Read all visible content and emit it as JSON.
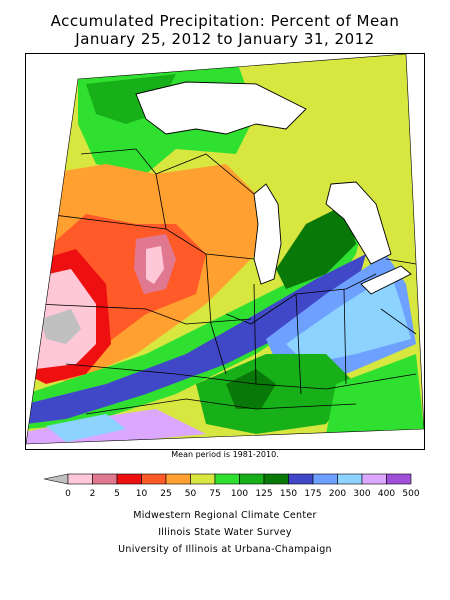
{
  "title": {
    "line1": "Accumulated Precipitation: Percent of Mean",
    "line2": "January 25, 2012 to January 31, 2012"
  },
  "note": "Mean period is 1981-2010.",
  "legend": {
    "labels": [
      "0",
      "2",
      "5",
      "10",
      "25",
      "50",
      "75",
      "100",
      "125",
      "150",
      "175",
      "200",
      "300",
      "400",
      "500"
    ],
    "colors": [
      "#ffc8d8",
      "#e07890",
      "#ee1010",
      "#ff5a28",
      "#ffa030",
      "#d8e640",
      "#30e030",
      "#18b018",
      "#087808",
      "#4048c8",
      "#6ea0ff",
      "#8cd4ff",
      "#dca8ff",
      "#a050d8"
    ],
    "below_color": "#c0c0c0"
  },
  "credits": [
    "Midwestern Regional Climate Center",
    "Illinois State Water Survey",
    "University of Illinois at Urbana-Champaign"
  ]
}
